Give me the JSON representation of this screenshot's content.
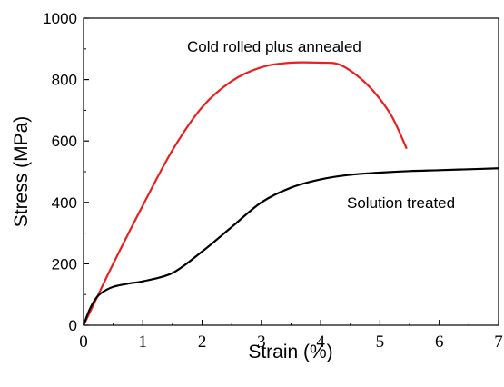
{
  "chart_data": {
    "type": "line",
    "xlabel": "Strain (%)",
    "ylabel": "Stress (MPa)",
    "xlim": [
      0,
      7
    ],
    "ylim": [
      0,
      1000
    ],
    "xticks": [
      "0",
      "1",
      "2",
      "3",
      "4",
      "5",
      "6",
      "7"
    ],
    "yticks": [
      "0",
      "200",
      "400",
      "600",
      "800",
      "1000"
    ],
    "grid": false,
    "series": [
      {
        "name": "Cold rolled plus annealed",
        "color": "#e8201e",
        "x": [
          0,
          0.2,
          0.5,
          1.0,
          1.5,
          2.0,
          2.5,
          3.0,
          3.5,
          4.0,
          4.3,
          4.6,
          4.9,
          5.2,
          5.45
        ],
        "y": [
          0,
          80,
          200,
          390,
          570,
          710,
          795,
          840,
          855,
          855,
          850,
          815,
          760,
          680,
          575
        ]
      },
      {
        "name": "Solution treated",
        "color": "#000000",
        "x": [
          0,
          0.1,
          0.2,
          0.3,
          0.5,
          0.8,
          1.0,
          1.5,
          2.0,
          2.5,
          3.0,
          3.5,
          4.0,
          4.5,
          5.0,
          5.5,
          6.0,
          6.5,
          7.0
        ],
        "y": [
          0,
          50,
          85,
          105,
          125,
          137,
          143,
          170,
          240,
          320,
          400,
          448,
          475,
          490,
          497,
          502,
          505,
          508,
          511
        ]
      }
    ],
    "annotations": [
      "Cold rolled plus annealed",
      "Solution treated"
    ]
  }
}
